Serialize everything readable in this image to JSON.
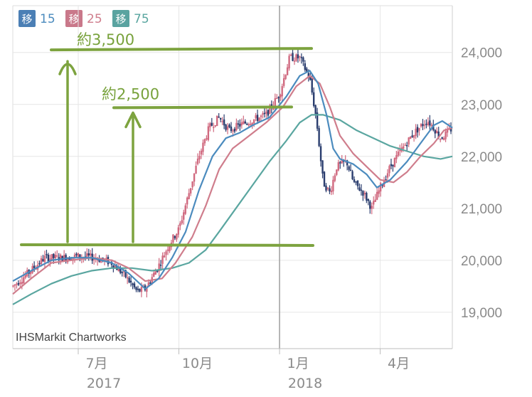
{
  "chart_data": {
    "type": "candlestick",
    "legend": [
      {
        "chip": "移",
        "period": "15",
        "color": "#4b8bbe",
        "chip_color": "#4b7fb5"
      },
      {
        "chip": "移",
        "period": "25",
        "color": "#cf7d8c",
        "chip_color": "#c9788a"
      },
      {
        "chip": "移",
        "period": "75",
        "color": "#5aa6a0",
        "chip_color": "#5aa3a0"
      }
    ],
    "y_ticks": [
      "24,000",
      "23,000",
      "22,000",
      "21,000",
      "20,000",
      "19,000"
    ],
    "y_tick_values": [
      24000,
      23000,
      22000,
      21000,
      20000,
      19000
    ],
    "ylim": [
      18300,
      24900
    ],
    "x_ticks": [
      {
        "label": "7月",
        "year": "2017",
        "month_index": 3
      },
      {
        "label": "10月",
        "year": "",
        "month_index": 6
      },
      {
        "label": "1月",
        "year": "2018",
        "month_index": 9
      },
      {
        "label": "4月",
        "year": "",
        "month_index": 12
      }
    ],
    "x_range_months": [
      1.05,
      14.15
    ],
    "credit": "IHSMarkit Chartworks",
    "annotations": [
      {
        "text": "約3,500",
        "level_from": 20300,
        "level_to": 24050
      },
      {
        "text": "約2,500",
        "level_from": 20300,
        "level_to": 22950
      }
    ],
    "price_path": [
      [
        1.05,
        19500
      ],
      [
        1.5,
        19750
      ],
      [
        2.0,
        20050
      ],
      [
        2.5,
        20050
      ],
      [
        3.0,
        20080
      ],
      [
        3.5,
        20050
      ],
      [
        4.0,
        19950
      ],
      [
        4.4,
        19700
      ],
      [
        4.75,
        19400
      ],
      [
        5.0,
        19450
      ],
      [
        5.4,
        19900
      ],
      [
        5.7,
        20300
      ],
      [
        6.0,
        20600
      ],
      [
        6.3,
        21300
      ],
      [
        6.6,
        22000
      ],
      [
        6.9,
        22550
      ],
      [
        7.2,
        22750
      ],
      [
        7.5,
        22500
      ],
      [
        7.8,
        22600
      ],
      [
        8.2,
        22700
      ],
      [
        8.6,
        22800
      ],
      [
        9.0,
        23200
      ],
      [
        9.3,
        23900
      ],
      [
        9.6,
        23900
      ],
      [
        9.9,
        23500
      ],
      [
        10.1,
        22700
      ],
      [
        10.3,
        21500
      ],
      [
        10.5,
        21300
      ],
      [
        10.7,
        21800
      ],
      [
        11.0,
        21900
      ],
      [
        11.2,
        21500
      ],
      [
        11.5,
        21300
      ],
      [
        11.75,
        21000
      ],
      [
        12.0,
        21400
      ],
      [
        12.3,
        21800
      ],
      [
        12.6,
        22100
      ],
      [
        13.0,
        22450
      ],
      [
        13.4,
        22700
      ],
      [
        13.6,
        22550
      ],
      [
        13.8,
        22350
      ],
      [
        14.0,
        22450
      ],
      [
        14.15,
        22550
      ]
    ],
    "ma15": [
      [
        1.05,
        19600
      ],
      [
        1.6,
        19800
      ],
      [
        2.2,
        20000
      ],
      [
        2.8,
        20050
      ],
      [
        3.4,
        20050
      ],
      [
        4.0,
        19950
      ],
      [
        4.5,
        19750
      ],
      [
        5.0,
        19450
      ],
      [
        5.4,
        19650
      ],
      [
        5.8,
        20050
      ],
      [
        6.2,
        20550
      ],
      [
        6.6,
        21350
      ],
      [
        7.0,
        22000
      ],
      [
        7.4,
        22350
      ],
      [
        7.8,
        22450
      ],
      [
        8.2,
        22600
      ],
      [
        8.7,
        22750
      ],
      [
        9.2,
        23150
      ],
      [
        9.6,
        23550
      ],
      [
        9.9,
        23650
      ],
      [
        10.15,
        23400
      ],
      [
        10.4,
        22800
      ],
      [
        10.6,
        22150
      ],
      [
        10.8,
        21950
      ],
      [
        11.2,
        21850
      ],
      [
        11.6,
        21650
      ],
      [
        11.9,
        21400
      ],
      [
        12.3,
        21550
      ],
      [
        12.8,
        21900
      ],
      [
        13.2,
        22250
      ],
      [
        13.6,
        22600
      ],
      [
        13.85,
        22680
      ],
      [
        14.15,
        22550
      ]
    ],
    "ma25": [
      [
        1.05,
        19350
      ],
      [
        1.6,
        19650
      ],
      [
        2.2,
        19950
      ],
      [
        2.8,
        20000
      ],
      [
        3.4,
        20050
      ],
      [
        4.0,
        20000
      ],
      [
        4.5,
        19850
      ],
      [
        5.0,
        19600
      ],
      [
        5.5,
        19650
      ],
      [
        5.9,
        19950
      ],
      [
        6.4,
        20450
      ],
      [
        6.8,
        21050
      ],
      [
        7.2,
        21750
      ],
      [
        7.6,
        22150
      ],
      [
        8.1,
        22400
      ],
      [
        8.6,
        22650
      ],
      [
        9.1,
        22950
      ],
      [
        9.5,
        23350
      ],
      [
        9.9,
        23550
      ],
      [
        10.2,
        23400
      ],
      [
        10.5,
        22950
      ],
      [
        10.8,
        22400
      ],
      [
        11.2,
        22050
      ],
      [
        11.6,
        21800
      ],
      [
        12.0,
        21550
      ],
      [
        12.4,
        21500
      ],
      [
        12.8,
        21700
      ],
      [
        13.2,
        22000
      ],
      [
        13.6,
        22250
      ],
      [
        13.9,
        22500
      ],
      [
        14.15,
        22550
      ]
    ],
    "ma75": [
      [
        1.05,
        19150
      ],
      [
        1.6,
        19350
      ],
      [
        2.2,
        19550
      ],
      [
        2.8,
        19700
      ],
      [
        3.4,
        19800
      ],
      [
        4.0,
        19850
      ],
      [
        4.6,
        19850
      ],
      [
        5.2,
        19800
      ],
      [
        5.8,
        19850
      ],
      [
        6.3,
        19950
      ],
      [
        6.8,
        20200
      ],
      [
        7.2,
        20550
      ],
      [
        7.7,
        21000
      ],
      [
        8.2,
        21450
      ],
      [
        8.7,
        21900
      ],
      [
        9.2,
        22300
      ],
      [
        9.6,
        22650
      ],
      [
        9.95,
        22800
      ],
      [
        10.3,
        22800
      ],
      [
        10.8,
        22700
      ],
      [
        11.3,
        22500
      ],
      [
        11.8,
        22350
      ],
      [
        12.3,
        22200
      ],
      [
        12.8,
        22100
      ],
      [
        13.3,
        22000
      ],
      [
        13.8,
        21950
      ],
      [
        14.15,
        22000
      ]
    ]
  }
}
